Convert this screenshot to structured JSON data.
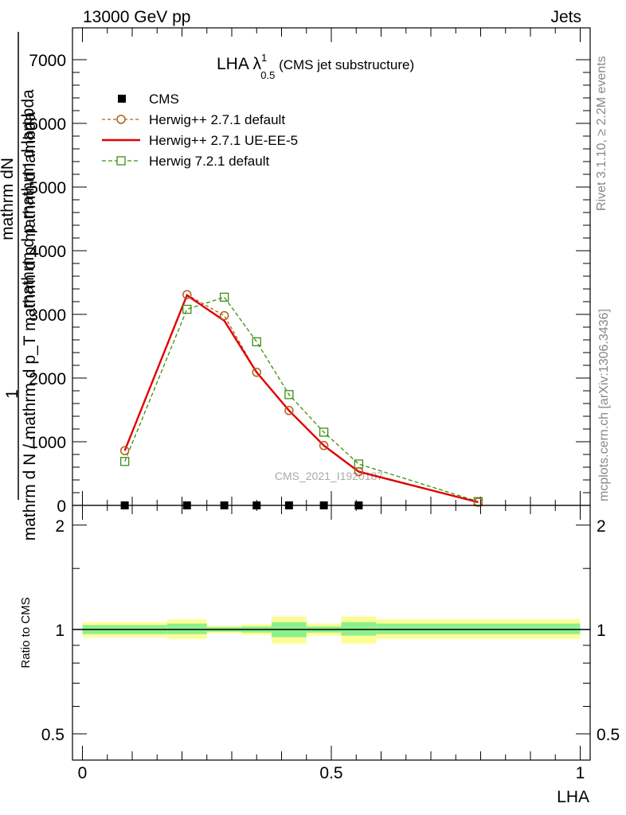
{
  "header": {
    "energy": "13000 GeV pp",
    "category": "Jets"
  },
  "side_labels": {
    "rivet": "Rivet 3.1.10, ≥ 2.2M events",
    "mcplots": "mcplots.cern.ch [arXiv:1306.3436]"
  },
  "watermark": "CMS_2021_I1920187",
  "colors": {
    "herwig_default": "#b05f1c",
    "herwig_ueee5": "#e00000",
    "herwig7": "#3a8f10",
    "band_inner": "#8cf08c",
    "band_outer": "#fdfd96"
  },
  "chart_data": [
    {
      "panel": "main",
      "type": "line",
      "title_main": "LHA λ",
      "title_sup": "1",
      "title_sub": "0.5",
      "title_suffix": " (CMS jet substructure)",
      "ylabel_numerator_line": "mathrm dN",
      "ylabel_numerator_line2": "mathrm d p mathrm d lambda",
      "ylabel_one": "1",
      "ylabel_denominator": "mathrm d N / mathrm d p_T mathrm d p mathrm d lambda",
      "xlim": [
        -0.02,
        1.02
      ],
      "ylim": [
        0,
        7500
      ],
      "y_tick_labels": [
        "0",
        "1000",
        "2000",
        "3000",
        "4000",
        "5000",
        "6000",
        "7000"
      ],
      "y_tick_values": [
        0,
        1000,
        2000,
        3000,
        4000,
        5000,
        6000,
        7000
      ],
      "legend_position": "top-left",
      "series": [
        {
          "name": "CMS",
          "style": "marker-square",
          "x": [
            0.085,
            0.21,
            0.285,
            0.35,
            0.415,
            0.485,
            0.555
          ],
          "y": [
            0,
            0,
            0,
            0,
            0,
            0,
            0
          ]
        },
        {
          "name": "Herwig++ 2.7.1 default",
          "style": "dashed-circle",
          "x": [
            0.085,
            0.21,
            0.285,
            0.35,
            0.415,
            0.485,
            0.555,
            0.795
          ],
          "y": [
            860,
            3310,
            2980,
            2090,
            1490,
            940,
            530,
            50
          ]
        },
        {
          "name": "Herwig++ 2.7.1 UE-EE-5",
          "style": "solid",
          "x": [
            0.085,
            0.21,
            0.285,
            0.35,
            0.415,
            0.485,
            0.555,
            0.795
          ],
          "y": [
            860,
            3300,
            2900,
            2090,
            1490,
            940,
            530,
            50
          ]
        },
        {
          "name": "Herwig 7.2.1 default",
          "style": "dashed-square",
          "x": [
            0.085,
            0.21,
            0.285,
            0.35,
            0.415,
            0.485,
            0.555,
            0.795
          ],
          "y": [
            690,
            3080,
            3270,
            2570,
            1740,
            1150,
            650,
            60
          ]
        }
      ]
    },
    {
      "panel": "ratio",
      "type": "area",
      "ylabel": "Ratio to CMS",
      "xlabel": "LHA",
      "xlim": [
        -0.02,
        1.02
      ],
      "ylim": [
        0.42,
        2.28
      ],
      "log_scale": true,
      "y_tick_labels": [
        "0.5",
        "1",
        "2"
      ],
      "y_tick_values": [
        0.5,
        1,
        2
      ],
      "x_tick_labels": [
        "0",
        "0.5",
        "1"
      ],
      "x_tick_values": [
        0,
        0.5,
        1
      ],
      "reference": 1,
      "bins": [
        {
          "lo": 0.0,
          "hi": 0.17,
          "inner": [
            0.97,
            1.03
          ],
          "outer": [
            0.95,
            1.05
          ]
        },
        {
          "lo": 0.17,
          "hi": 0.25,
          "inner": [
            0.97,
            1.04
          ],
          "outer": [
            0.94,
            1.07
          ]
        },
        {
          "lo": 0.25,
          "hi": 0.32,
          "inner": [
            0.985,
            1.015
          ],
          "outer": [
            0.975,
            1.025
          ]
        },
        {
          "lo": 0.32,
          "hi": 0.38,
          "inner": [
            0.98,
            1.02
          ],
          "outer": [
            0.965,
            1.035
          ]
        },
        {
          "lo": 0.38,
          "hi": 0.45,
          "inner": [
            0.95,
            1.05
          ],
          "outer": [
            0.91,
            1.09
          ]
        },
        {
          "lo": 0.45,
          "hi": 0.52,
          "inner": [
            0.98,
            1.02
          ],
          "outer": [
            0.96,
            1.04
          ]
        },
        {
          "lo": 0.52,
          "hi": 0.59,
          "inner": [
            0.96,
            1.05
          ],
          "outer": [
            0.91,
            1.09
          ]
        },
        {
          "lo": 0.59,
          "hi": 1.0,
          "inner": [
            0.97,
            1.04
          ],
          "outer": [
            0.94,
            1.07
          ]
        }
      ]
    }
  ]
}
